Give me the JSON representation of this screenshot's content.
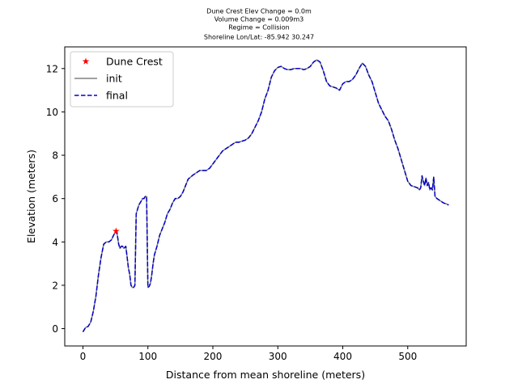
{
  "chart_data": {
    "type": "line",
    "title_lines": [
      "Dune Crest Elev Change = 0.0m",
      "Volume Change = 0.009m3",
      "Regime = Collision",
      "Shoreline Lon/Lat: -85.942 30.247"
    ],
    "xlabel": "Distance from mean shoreline (meters)",
    "ylabel": "Elevation (meters)",
    "xlim": [
      -28,
      590
    ],
    "ylim": [
      -0.8,
      13.0
    ],
    "xticks": [
      0,
      100,
      200,
      300,
      400,
      500
    ],
    "yticks": [
      0,
      2,
      4,
      6,
      8,
      10,
      12
    ],
    "grid": false,
    "legend_position": "upper left",
    "legend": [
      "Dune Crest",
      "init",
      "final"
    ],
    "colors": {
      "init": "#808080",
      "final": "#0000cc",
      "dune_crest": "#ff0000"
    },
    "dune_crest": {
      "x": 51,
      "y": 4.5
    },
    "series": [
      {
        "name": "init",
        "style": "solid",
        "x": [
          0,
          4,
          8,
          12,
          16,
          20,
          24,
          28,
          32,
          36,
          40,
          44,
          47,
          49,
          51,
          53,
          55,
          57,
          59,
          61,
          63,
          66,
          68,
          70,
          72,
          74,
          76,
          78,
          80,
          82,
          84,
          86,
          88,
          90,
          92,
          94,
          96,
          98,
          100,
          102,
          104,
          106,
          108,
          110,
          114,
          118,
          122,
          126,
          130,
          134,
          138,
          142,
          146,
          150,
          154,
          158,
          162,
          166,
          170,
          175,
          180,
          185,
          190,
          195,
          200,
          205,
          210,
          215,
          220,
          225,
          230,
          235,
          240,
          245,
          250,
          255,
          260,
          265,
          270,
          275,
          280,
          285,
          290,
          295,
          300,
          305,
          310,
          315,
          320,
          325,
          330,
          335,
          340,
          345,
          350,
          355,
          360,
          365,
          370,
          375,
          380,
          385,
          390,
          395,
          400,
          405,
          410,
          415,
          420,
          425,
          430,
          435,
          440,
          445,
          450,
          455,
          460,
          465,
          470,
          475,
          480,
          485,
          490,
          495,
          500,
          505,
          510,
          515,
          518,
          520,
          522,
          524,
          526,
          528,
          530,
          532,
          534,
          536,
          538,
          540,
          542,
          545,
          550,
          555,
          560,
          563
        ],
        "y": [
          -0.15,
          0.05,
          0.1,
          0.3,
          0.8,
          1.5,
          2.5,
          3.3,
          3.9,
          4.0,
          4.0,
          4.1,
          4.3,
          4.4,
          4.5,
          4.3,
          3.9,
          3.7,
          3.8,
          3.8,
          3.7,
          3.8,
          3.3,
          2.8,
          2.5,
          2.0,
          1.9,
          1.9,
          2.0,
          5.3,
          5.5,
          5.7,
          5.8,
          5.9,
          6.0,
          6.0,
          6.1,
          6.1,
          1.9,
          1.95,
          2.1,
          2.5,
          3.0,
          3.4,
          3.8,
          4.3,
          4.6,
          4.9,
          5.3,
          5.5,
          5.8,
          6.0,
          6.0,
          6.1,
          6.3,
          6.6,
          6.9,
          7.0,
          7.1,
          7.2,
          7.3,
          7.3,
          7.3,
          7.4,
          7.6,
          7.8,
          8.0,
          8.2,
          8.3,
          8.4,
          8.5,
          8.6,
          8.6,
          8.65,
          8.7,
          8.8,
          9.0,
          9.3,
          9.6,
          10.0,
          10.6,
          11.0,
          11.6,
          11.9,
          12.05,
          12.1,
          12.0,
          11.95,
          11.95,
          12.0,
          12.0,
          12.0,
          11.95,
          12.0,
          12.1,
          12.3,
          12.4,
          12.3,
          11.9,
          11.4,
          11.2,
          11.15,
          11.1,
          11.0,
          11.3,
          11.4,
          11.4,
          11.5,
          11.7,
          12.0,
          12.25,
          12.1,
          11.7,
          11.4,
          10.9,
          10.4,
          10.1,
          9.8,
          9.6,
          9.2,
          8.7,
          8.3,
          7.8,
          7.3,
          6.8,
          6.6,
          6.55,
          6.5,
          6.4,
          6.5,
          7.05,
          6.8,
          6.6,
          6.95,
          6.6,
          6.75,
          6.4,
          6.5,
          6.4,
          7.0,
          6.1,
          6.0,
          5.9,
          5.8,
          5.75,
          5.7
        ]
      },
      {
        "name": "final",
        "style": "dashed",
        "x": [
          0,
          4,
          8,
          12,
          16,
          20,
          24,
          28,
          32,
          36,
          40,
          44,
          47,
          49,
          51,
          53,
          55,
          57,
          59,
          61,
          63,
          66,
          68,
          70,
          72,
          74,
          76,
          78,
          80,
          82,
          84,
          86,
          88,
          90,
          92,
          94,
          96,
          98,
          100,
          102,
          104,
          106,
          108,
          110,
          114,
          118,
          122,
          126,
          130,
          134,
          138,
          142,
          146,
          150,
          154,
          158,
          162,
          166,
          170,
          175,
          180,
          185,
          190,
          195,
          200,
          205,
          210,
          215,
          220,
          225,
          230,
          235,
          240,
          245,
          250,
          255,
          260,
          265,
          270,
          275,
          280,
          285,
          290,
          295,
          300,
          305,
          310,
          315,
          320,
          325,
          330,
          335,
          340,
          345,
          350,
          355,
          360,
          365,
          370,
          375,
          380,
          385,
          390,
          395,
          400,
          405,
          410,
          415,
          420,
          425,
          430,
          435,
          440,
          445,
          450,
          455,
          460,
          465,
          470,
          475,
          480,
          485,
          490,
          495,
          500,
          505,
          510,
          515,
          518,
          520,
          522,
          524,
          526,
          528,
          530,
          532,
          534,
          536,
          538,
          540,
          542,
          545,
          550,
          555,
          560,
          563
        ],
        "y": [
          -0.15,
          0.05,
          0.1,
          0.3,
          0.8,
          1.5,
          2.5,
          3.3,
          3.9,
          4.0,
          4.0,
          4.1,
          4.3,
          4.4,
          4.5,
          4.3,
          3.9,
          3.7,
          3.8,
          3.8,
          3.7,
          3.8,
          3.3,
          2.8,
          2.5,
          2.0,
          1.9,
          1.9,
          2.0,
          5.3,
          5.5,
          5.7,
          5.8,
          5.9,
          6.0,
          6.0,
          6.1,
          6.1,
          1.9,
          1.95,
          2.1,
          2.5,
          3.0,
          3.4,
          3.8,
          4.3,
          4.6,
          4.9,
          5.3,
          5.5,
          5.8,
          6.0,
          6.0,
          6.1,
          6.3,
          6.6,
          6.9,
          7.0,
          7.1,
          7.2,
          7.3,
          7.3,
          7.3,
          7.4,
          7.6,
          7.8,
          8.0,
          8.2,
          8.3,
          8.4,
          8.5,
          8.6,
          8.6,
          8.65,
          8.7,
          8.8,
          9.0,
          9.3,
          9.6,
          10.0,
          10.6,
          11.0,
          11.6,
          11.9,
          12.05,
          12.1,
          12.0,
          11.95,
          11.95,
          12.0,
          12.0,
          12.0,
          11.95,
          12.0,
          12.1,
          12.3,
          12.4,
          12.3,
          11.9,
          11.4,
          11.2,
          11.15,
          11.1,
          11.0,
          11.3,
          11.4,
          11.4,
          11.5,
          11.7,
          12.0,
          12.25,
          12.1,
          11.7,
          11.4,
          10.9,
          10.4,
          10.1,
          9.8,
          9.6,
          9.2,
          8.7,
          8.3,
          7.8,
          7.3,
          6.8,
          6.6,
          6.55,
          6.5,
          6.4,
          6.5,
          7.05,
          6.8,
          6.6,
          6.95,
          6.6,
          6.75,
          6.4,
          6.5,
          6.4,
          7.0,
          6.1,
          6.0,
          5.9,
          5.8,
          5.75,
          5.7
        ]
      }
    ]
  }
}
